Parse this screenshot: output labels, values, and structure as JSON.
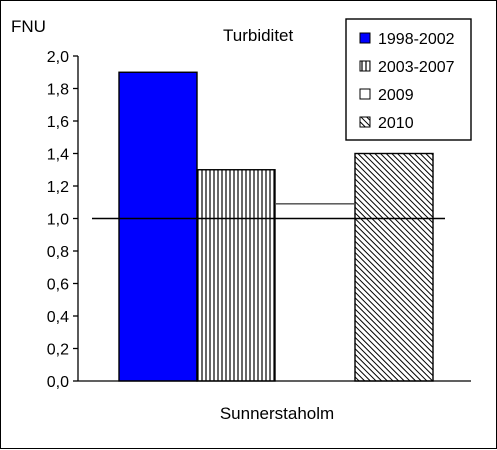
{
  "chart_data": {
    "type": "bar",
    "title": "Turbiditet",
    "ylabel": "FNU",
    "xlabel": "",
    "categories": [
      "Sunnerstaholm"
    ],
    "ylim": [
      0,
      2.0
    ],
    "ytick_step": 0.2,
    "yticks": [
      "0,0",
      "0,2",
      "0,4",
      "0,6",
      "0,8",
      "1,0",
      "1,2",
      "1,4",
      "1,6",
      "1,8",
      "2,0"
    ],
    "grid": false,
    "legend_position": "top-right",
    "reference_line": {
      "value": 1.0
    },
    "series": [
      {
        "name": "1998-2002",
        "values": [
          1.9
        ],
        "color": "#0000ff",
        "pattern": "solid"
      },
      {
        "name": "2003-2007",
        "values": [
          1.3
        ],
        "color": "#ffffff",
        "pattern": "vertical-lines"
      },
      {
        "name": "2009",
        "values": [
          1.09
        ],
        "color": "#ffffff",
        "pattern": "none"
      },
      {
        "name": "2010",
        "values": [
          1.4
        ],
        "color": "#ffffff",
        "pattern": "diagonal-lines"
      }
    ]
  }
}
